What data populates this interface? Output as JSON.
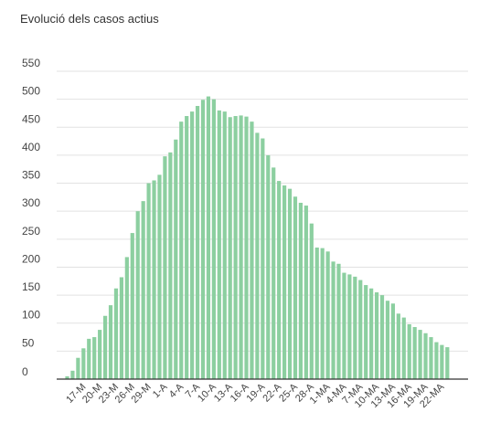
{
  "chart_data": {
    "type": "bar",
    "title": "Evolució dels casos actius",
    "xlabel": "",
    "ylabel": "",
    "ylim": [
      0,
      550
    ],
    "yticks": [
      0,
      50,
      100,
      150,
      200,
      250,
      300,
      350,
      400,
      450,
      500,
      550
    ],
    "grid": true,
    "legend": "none",
    "bar_color": "#8ccfa0",
    "grid_color": "#e2e2e2",
    "axis_color": "#333333",
    "categories": [
      "",
      "",
      "",
      "17-M",
      "",
      "",
      "20-M",
      "",
      "",
      "23-M",
      "",
      "",
      "26-M",
      "",
      "",
      "29-M",
      "",
      "",
      "1-A",
      "",
      "",
      "4-A",
      "",
      "",
      "7-A",
      "",
      "",
      "10-A",
      "",
      "",
      "13-A",
      "",
      "",
      "16-A",
      "",
      "",
      "19-A",
      "",
      "",
      "22-A",
      "",
      "",
      "25-A",
      "",
      "",
      "28-A",
      "",
      "",
      "1-MA",
      "",
      "",
      "4-MA",
      "",
      "",
      "7-MA",
      "",
      "",
      "10-MA",
      "",
      "",
      "13-MA",
      "",
      "",
      "16-MA",
      "",
      "",
      "19-MA",
      "",
      "",
      "22-MA",
      ""
    ],
    "values": [
      5,
      15,
      38,
      55,
      72,
      75,
      88,
      113,
      132,
      162,
      182,
      218,
      261,
      300,
      318,
      350,
      355,
      365,
      398,
      405,
      428,
      460,
      470,
      478,
      488,
      499,
      505,
      500,
      480,
      478,
      468,
      470,
      471,
      469,
      460,
      440,
      430,
      400,
      378,
      354,
      346,
      340,
      326,
      315,
      310,
      278,
      235,
      234,
      228,
      210,
      206,
      190,
      187,
      183,
      177,
      168,
      162,
      155,
      150,
      140,
      135,
      117,
      110,
      98,
      93,
      88,
      82,
      75,
      66,
      61,
      57
    ]
  }
}
